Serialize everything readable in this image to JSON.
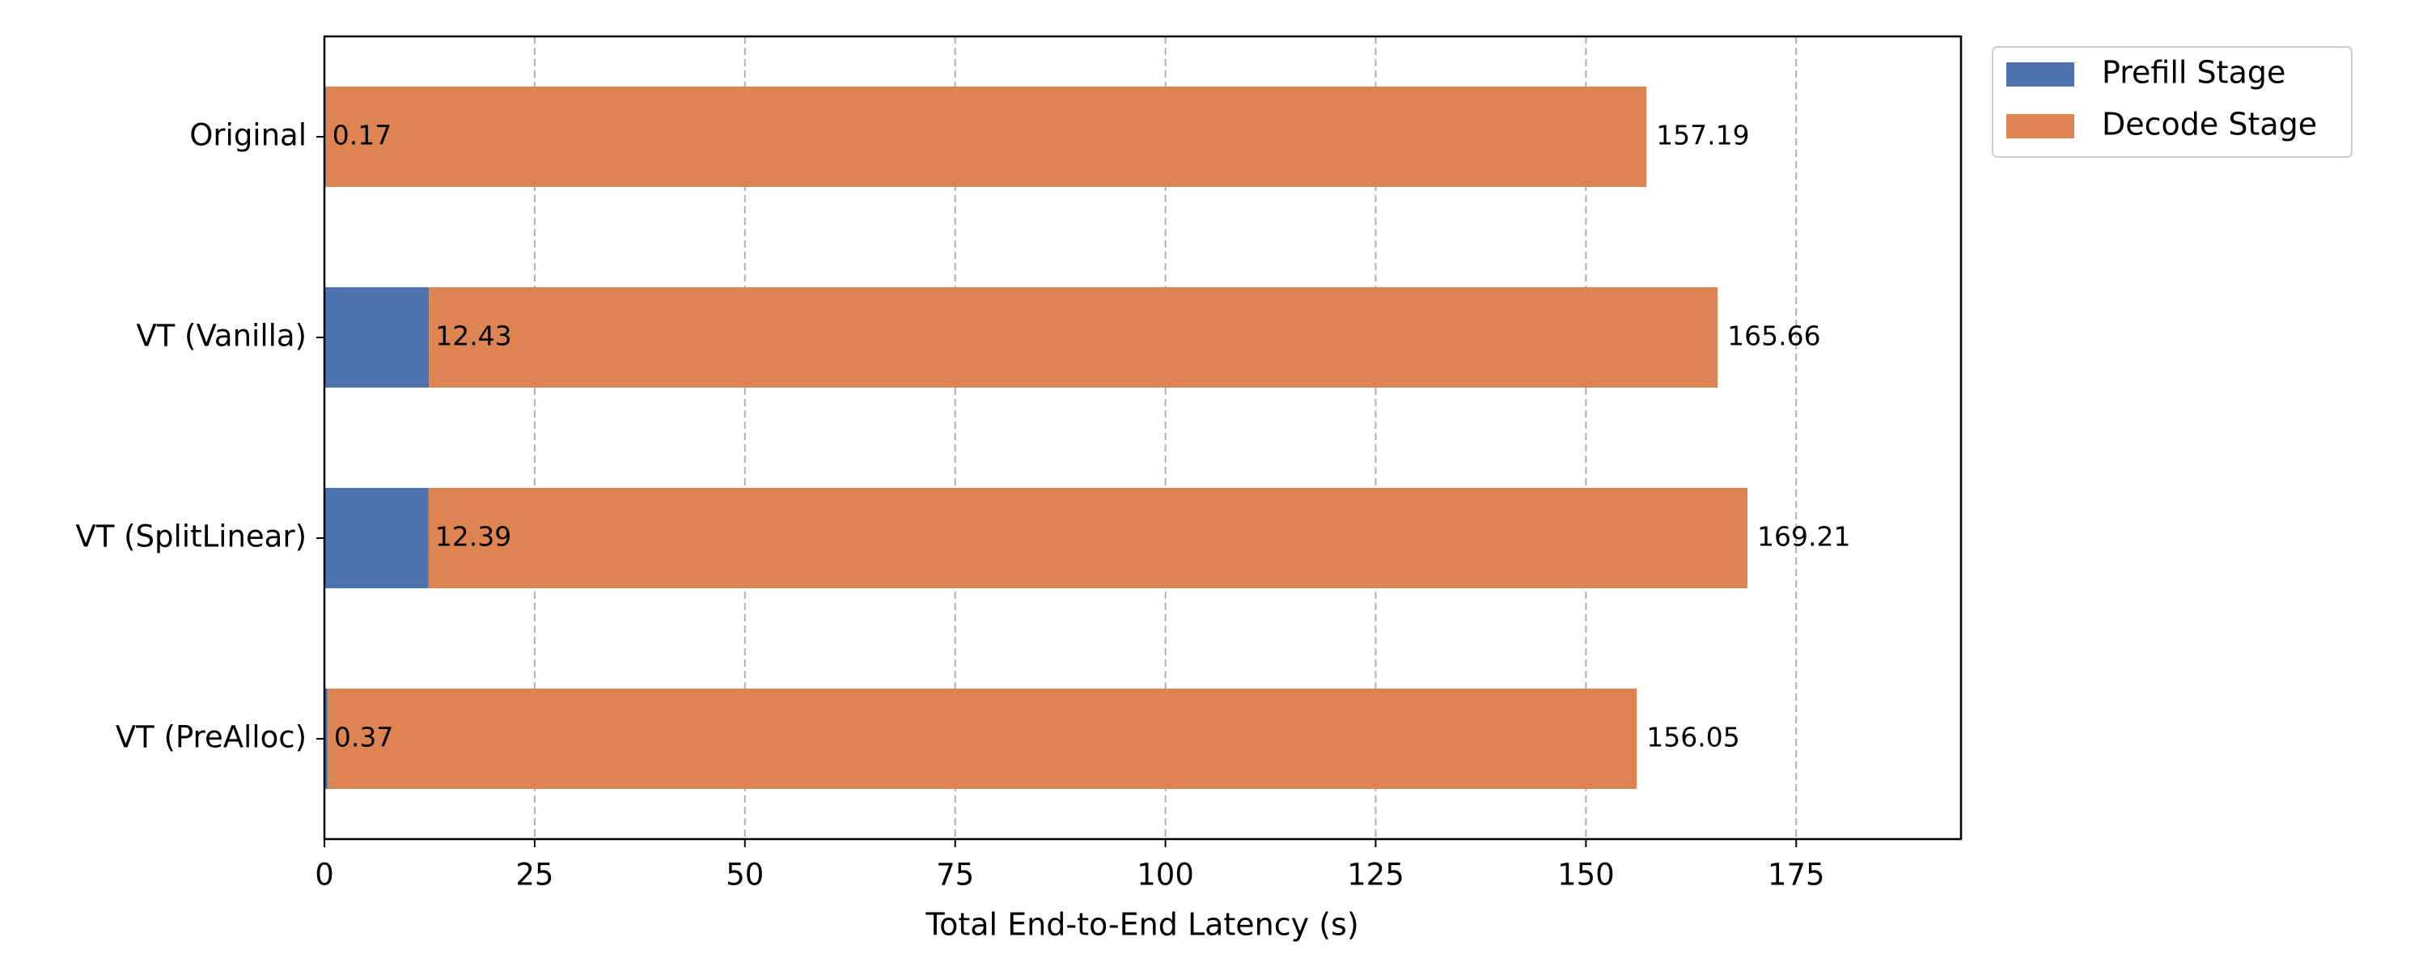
{
  "chart_data": {
    "type": "stacked-barh",
    "xlabel": "Total End-to-End Latency (s)",
    "categories": [
      "Original",
      "VT (Vanilla)",
      "VT (SplitLinear)",
      "VT (PreAlloc)"
    ],
    "series": [
      {
        "name": "Prefill Stage",
        "color": "#4c72b0",
        "values": [
          0.17,
          12.43,
          12.39,
          0.37
        ]
      },
      {
        "name": "Decode Stage",
        "color": "#dd8452",
        "values": [
          157.02,
          153.23,
          156.82,
          155.68
        ]
      }
    ],
    "totals": [
      157.19,
      165.66,
      169.21,
      156.05
    ],
    "xlim": [
      0,
      194.6
    ],
    "xticks": [
      0,
      25,
      50,
      75,
      100,
      125,
      150,
      175
    ],
    "grid": true,
    "legend": "outside-upper-right"
  }
}
